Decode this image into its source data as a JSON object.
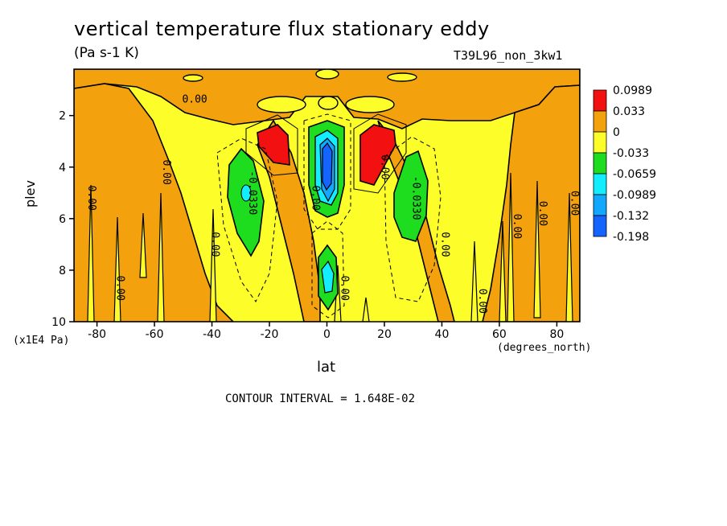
{
  "title": "vertical temperature flux stationary eddy",
  "units": "(Pa s-1 K)",
  "dataset": "T39L96_non_3kw1",
  "contour_interval": "CONTOUR INTERVAL = 1.648E-02",
  "colors": {
    "red": "#f21010",
    "orange": "#f3a20d",
    "yellow": "#fdfd2a",
    "green": "#1edd1e",
    "cyan": "#12eefe",
    "lightblue": "#12a8fe",
    "blue": "#1464fe"
  },
  "chart_data": {
    "type": "contour",
    "title": "vertical temperature flux stationary eddy",
    "units": "(Pa s-1 K)",
    "xlabel": "lat",
    "x_units": "(degrees_north)",
    "ylabel": "plev",
    "y_units": "(x1E4 Pa)",
    "xlim": [
      -88,
      88
    ],
    "ylim": [
      10,
      0.2
    ],
    "x_ticks": [
      -80,
      -60,
      -40,
      -20,
      0,
      20,
      40,
      60,
      80
    ],
    "y_ticks": [
      2,
      4,
      6,
      8,
      10
    ],
    "legend": {
      "placement": "right",
      "levels": [
        "0.0989",
        "0.033",
        "0",
        "-0.033",
        "-0.0659",
        "-0.0989",
        "-0.132",
        "-0.198"
      ],
      "colors": [
        "red",
        "orange",
        "yellow",
        "green",
        "cyan",
        "lightblue",
        "blue"
      ]
    },
    "contour_labels": [
      {
        "text": "0.00",
        "lat": -46,
        "plev": 1.5
      },
      {
        "text": "0.00",
        "lat": -83,
        "plev": 5.2
      },
      {
        "text": "0.00",
        "lat": -57,
        "plev": 4.2
      },
      {
        "text": "0.00",
        "lat": -40,
        "plev": 7.0
      },
      {
        "text": "0.00",
        "lat": -73,
        "plev": 8.7
      },
      {
        "text": "-0.0330",
        "lat": -27,
        "plev": 5.0
      },
      {
        "text": "0.00",
        "lat": -5,
        "plev": 5.2
      },
      {
        "text": "0.00",
        "lat": 5,
        "plev": 8.7
      },
      {
        "text": "0.00",
        "lat": 19,
        "plev": 4.0
      },
      {
        "text": "-0.0330",
        "lat": 30,
        "plev": 5.2
      },
      {
        "text": "0.00",
        "lat": 40,
        "plev": 7.0
      },
      {
        "text": "0.00",
        "lat": 53,
        "plev": 9.2
      },
      {
        "text": "0.00",
        "lat": 65,
        "plev": 6.3
      },
      {
        "text": "0.00",
        "lat": 74,
        "plev": 5.8
      },
      {
        "text": "0.00",
        "lat": 85,
        "plev": 5.4
      }
    ]
  }
}
